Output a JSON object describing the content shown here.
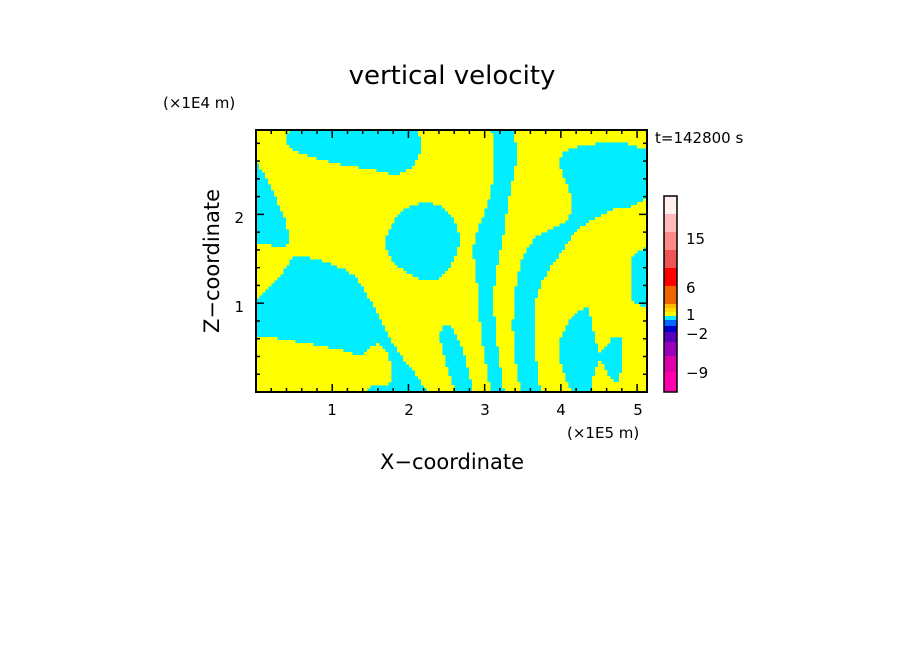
{
  "chart_data": {
    "type": "heatmap",
    "title": "vertical velocity",
    "xlabel": "X−coordinate",
    "ylabel": "Z−coordinate",
    "x_unit": "(×1E5 m)",
    "y_unit": "(×1E4 m)",
    "time_label": "t=142800 s",
    "xlim": [
      0,
      5.13
    ],
    "ylim": [
      0,
      2.95
    ],
    "x_ticks": [
      "1",
      "2",
      "3",
      "4",
      "5"
    ],
    "y_ticks": [
      "1",
      "2"
    ],
    "field_colors": {
      "positive_weak": "#ffff00",
      "negative_weak": "#00eeff"
    },
    "colorbar": {
      "labels": [
        "15",
        "6",
        "1",
        "−2",
        "−9"
      ],
      "levels": [
        -12,
        -9,
        -6,
        -4,
        -3,
        -2,
        -1,
        0,
        1,
        2,
        3,
        6,
        9,
        12,
        15,
        18,
        21
      ],
      "colors": [
        "#ff00aa",
        "#dd00aa",
        "#9900bb",
        "#5500bb",
        "#0000cc",
        "#0066ff",
        "#00eeff",
        "#ffff00",
        "#ffdd00",
        "#ffbb00",
        "#ee6600",
        "#ff0000",
        "#ee5555",
        "#ff8888",
        "#ffbbbb",
        "#fff0ee"
      ]
    }
  }
}
